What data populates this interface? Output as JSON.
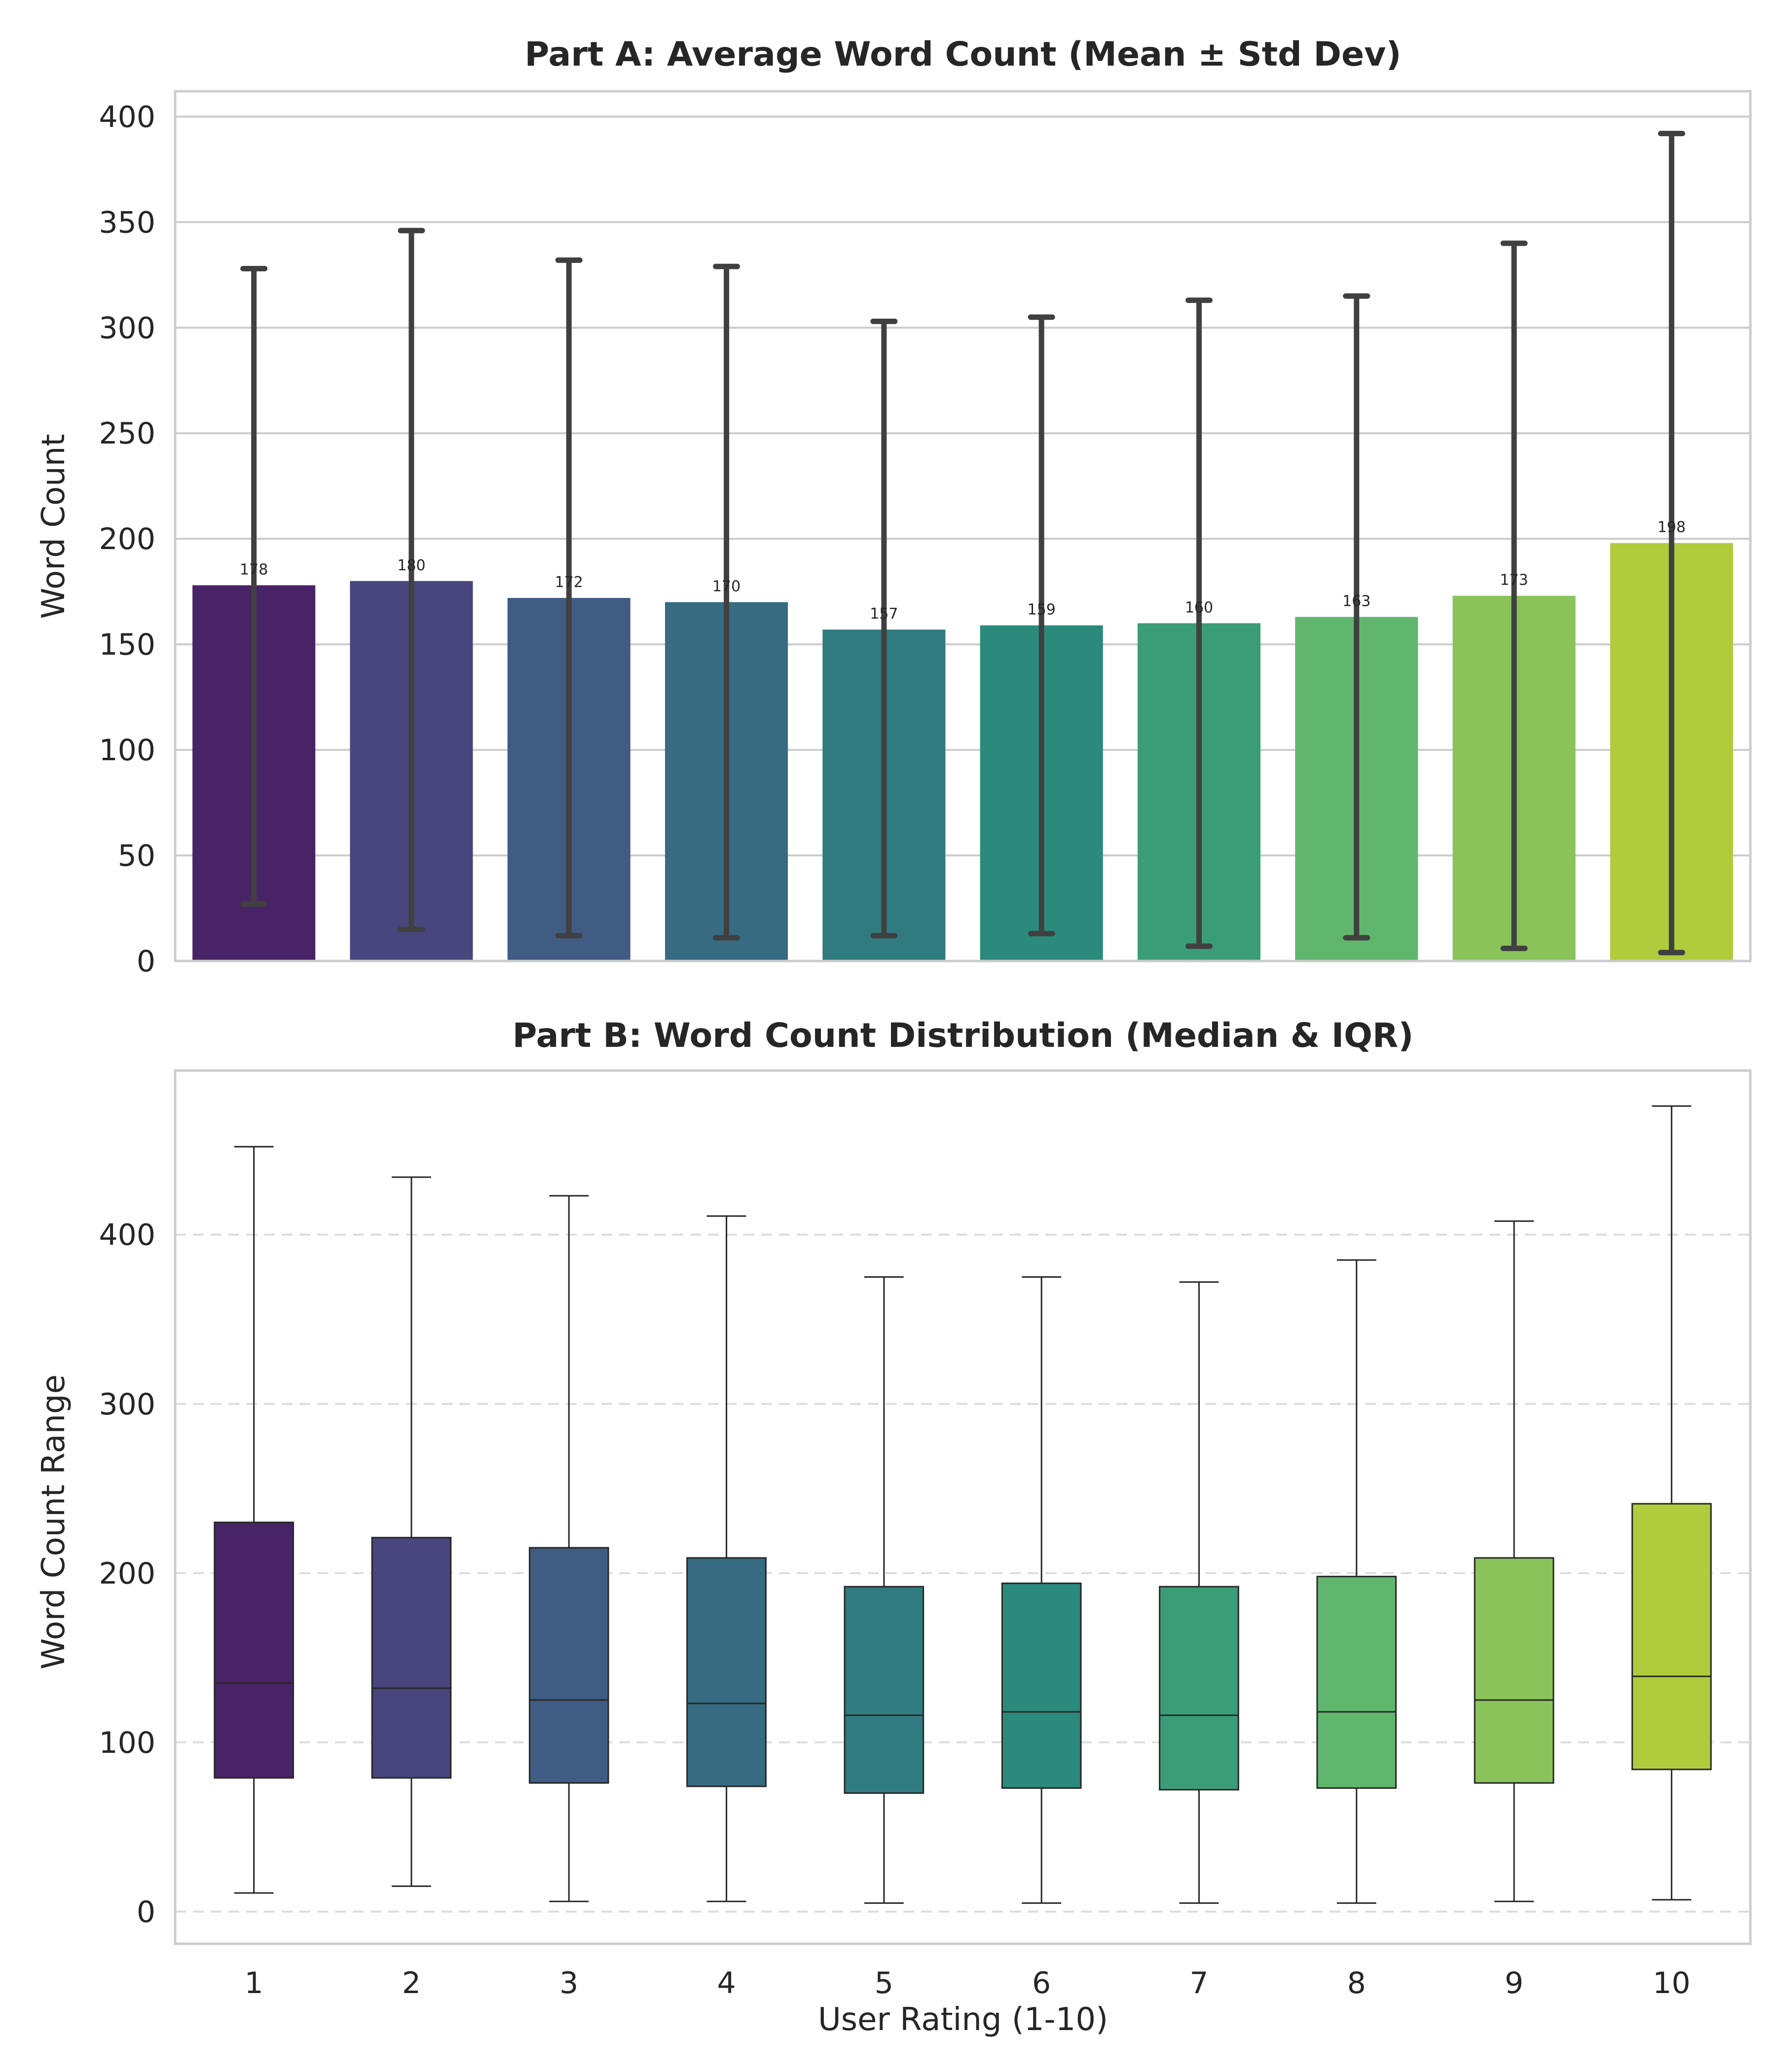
{
  "chart_data": [
    {
      "type": "bar",
      "title": "Part A: Average Word Count (Mean ± Std Dev)",
      "xlabel": "",
      "ylabel": "Word Count",
      "categories": [
        "1",
        "2",
        "3",
        "4",
        "5",
        "6",
        "7",
        "8",
        "9",
        "10"
      ],
      "values": [
        178,
        180,
        172,
        170,
        157,
        159,
        160,
        163,
        173,
        198
      ],
      "value_labels": [
        "178",
        "180",
        "172",
        "170",
        "157",
        "159",
        "160",
        "163",
        "173",
        "198"
      ],
      "error_low": [
        27,
        15,
        12,
        11,
        12,
        13,
        7,
        11,
        6,
        4
      ],
      "error_high": [
        328,
        346,
        332,
        329,
        303,
        305,
        313,
        315,
        340,
        392
      ],
      "ylim": [
        0,
        412
      ],
      "yticks": [
        0,
        50,
        100,
        150,
        200,
        250,
        300,
        350,
        400
      ],
      "grid": "horizontal solid",
      "colors": [
        "#482466",
        "#48467c",
        "#415c83",
        "#366b82",
        "#307b7f",
        "#2b8a7b",
        "#3a9d78",
        "#61b66e",
        "#8ac35a",
        "#b0cb3b"
      ]
    },
    {
      "type": "box",
      "title": "Part B: Word Count Distribution (Median & IQR)",
      "xlabel": "User Rating (1-10)",
      "ylabel": "Word Count Range",
      "categories": [
        "1",
        "2",
        "3",
        "4",
        "5",
        "6",
        "7",
        "8",
        "9",
        "10"
      ],
      "boxes": [
        {
          "whisker_low": 11,
          "q1": 79,
          "median": 135,
          "q3": 230,
          "whisker_high": 452
        },
        {
          "whisker_low": 15,
          "q1": 79,
          "median": 132,
          "q3": 221,
          "whisker_high": 434
        },
        {
          "whisker_low": 6,
          "q1": 76,
          "median": 125,
          "q3": 215,
          "whisker_high": 423
        },
        {
          "whisker_low": 6,
          "q1": 74,
          "median": 123,
          "q3": 209,
          "whisker_high": 411
        },
        {
          "whisker_low": 5,
          "q1": 70,
          "median": 116,
          "q3": 192,
          "whisker_high": 375
        },
        {
          "whisker_low": 5,
          "q1": 73,
          "median": 118,
          "q3": 194,
          "whisker_high": 375
        },
        {
          "whisker_low": 5,
          "q1": 72,
          "median": 116,
          "q3": 192,
          "whisker_high": 372
        },
        {
          "whisker_low": 5,
          "q1": 73,
          "median": 118,
          "q3": 198,
          "whisker_high": 385
        },
        {
          "whisker_low": 6,
          "q1": 76,
          "median": 125,
          "q3": 209,
          "whisker_high": 408
        },
        {
          "whisker_low": 7,
          "q1": 84,
          "median": 139,
          "q3": 241,
          "whisker_high": 476
        }
      ],
      "ylim": [
        -19,
        497
      ],
      "yticks": [
        0,
        100,
        200,
        300,
        400
      ],
      "grid": "horizontal dashed",
      "colors": [
        "#482466",
        "#48467c",
        "#415c83",
        "#366b82",
        "#307b7f",
        "#2b8a7b",
        "#3a9d78",
        "#61b66e",
        "#8ac35a",
        "#b0cb3b"
      ]
    }
  ]
}
